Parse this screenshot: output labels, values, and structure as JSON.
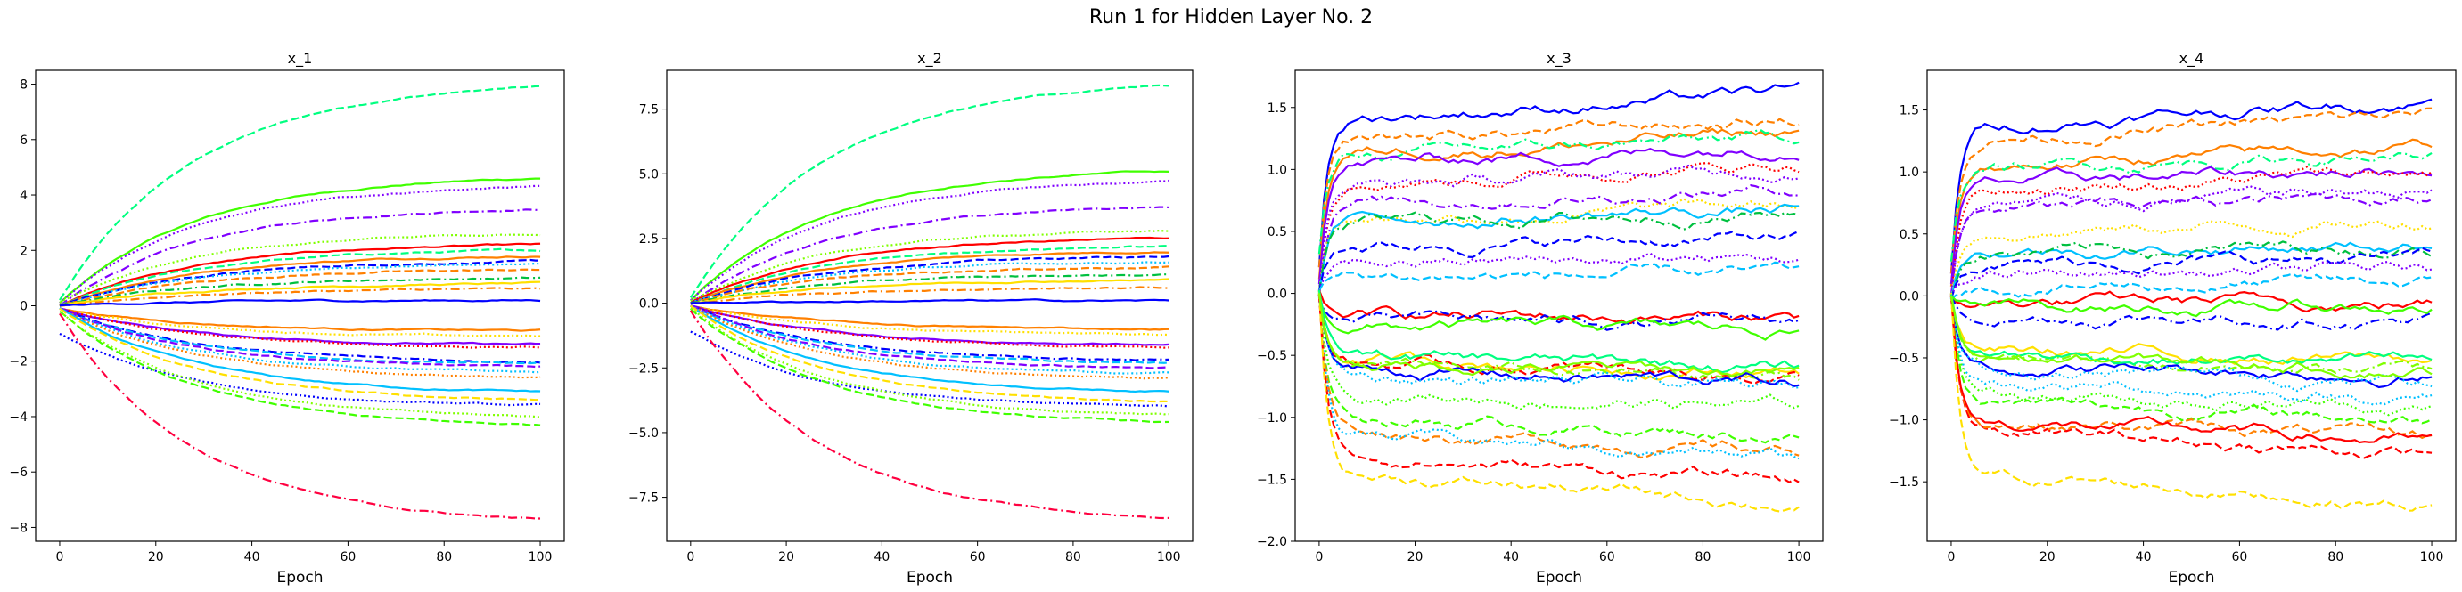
{
  "figure": {
    "suptitle": "Run 1 for Hidden Layer No. 2"
  },
  "chart_data": [
    {
      "type": "line",
      "title": "x_1",
      "xlabel": "Epoch",
      "ylabel": "",
      "xlim": [
        -5,
        105
      ],
      "ylim": [
        -8.5,
        8.5
      ],
      "xticks": [
        "0",
        "20",
        "40",
        "60",
        "80",
        "100"
      ],
      "yticks": [
        "-8",
        "-6",
        "-4",
        "-2",
        "0",
        "2",
        "4",
        "6",
        "8"
      ],
      "grid": false,
      "series_count": 30,
      "series": [
        {
          "color": "#00ff80",
          "dash": "dashed",
          "start": 0.2,
          "end": 7.9
        },
        {
          "color": "#40ff00",
          "dash": "solid",
          "start": 0.1,
          "end": 4.6
        },
        {
          "color": "#8000ff",
          "dash": "dotted",
          "start": 0.1,
          "end": 4.3
        },
        {
          "color": "#8000ff",
          "dash": "dashdot",
          "start": 0.0,
          "end": 3.5
        },
        {
          "color": "#80ff00",
          "dash": "dotted",
          "start": 0.1,
          "end": 2.6
        },
        {
          "color": "#ff0000",
          "dash": "solid",
          "start": 0.0,
          "end": 2.2
        },
        {
          "color": "#00ff80",
          "dash": "dashed",
          "start": 0.0,
          "end": 2.0
        },
        {
          "color": "#ff8000",
          "dash": "solid",
          "start": 0.0,
          "end": 1.8
        },
        {
          "color": "#0000ff",
          "dash": "dashed",
          "start": 0.0,
          "end": 1.6
        },
        {
          "color": "#00c0ff",
          "dash": "dotted",
          "start": 0.0,
          "end": 1.5
        },
        {
          "color": "#ff8000",
          "dash": "dashed",
          "start": 0.0,
          "end": 1.3
        },
        {
          "color": "#00c040",
          "dash": "dashdot",
          "start": 0.0,
          "end": 1.0
        },
        {
          "color": "#ffe000",
          "dash": "solid",
          "start": 0.0,
          "end": 0.8
        },
        {
          "color": "#ff8000",
          "dash": "dashdot",
          "start": 0.0,
          "end": 0.6
        },
        {
          "color": "#0000ff",
          "dash": "solid",
          "start": 0.0,
          "end": 0.2
        },
        {
          "color": "#ff8000",
          "dash": "solid",
          "start": -0.1,
          "end": -0.9
        },
        {
          "color": "#ffe000",
          "dash": "dotted",
          "start": -0.1,
          "end": -1.1
        },
        {
          "color": "#8000ff",
          "dash": "solid",
          "start": -0.1,
          "end": -1.4
        },
        {
          "color": "#ff0000",
          "dash": "dotted",
          "start": -0.1,
          "end": -1.5
        },
        {
          "color": "#0000ff",
          "dash": "dashdot",
          "start": -0.1,
          "end": -2.0
        },
        {
          "color": "#00c0ff",
          "dash": "dashed",
          "start": -0.1,
          "end": -2.1
        },
        {
          "color": "#8000ff",
          "dash": "dashed",
          "start": -0.1,
          "end": -2.2
        },
        {
          "color": "#00c0ff",
          "dash": "dotted",
          "start": -0.1,
          "end": -2.4
        },
        {
          "color": "#ff8000",
          "dash": "dotted",
          "start": -0.1,
          "end": -2.6
        },
        {
          "color": "#00c0ff",
          "dash": "solid",
          "start": -0.1,
          "end": -3.1
        },
        {
          "color": "#ffe000",
          "dash": "dashed",
          "start": -0.1,
          "end": -3.4
        },
        {
          "color": "#0000ff",
          "dash": "dotted",
          "start": -1.0,
          "end": -3.6
        },
        {
          "color": "#40ff00",
          "dash": "dashed",
          "start": -0.2,
          "end": -4.3
        },
        {
          "color": "#80ff00",
          "dash": "dotted",
          "start": -0.2,
          "end": -4.0
        },
        {
          "color": "#ff0040",
          "dash": "dashdot",
          "start": -0.3,
          "end": -7.7
        }
      ]
    },
    {
      "type": "line",
      "title": "x_2",
      "xlabel": "Epoch",
      "ylabel": "",
      "xlim": [
        -5,
        105
      ],
      "ylim": [
        -9.2,
        9.0
      ],
      "xticks": [
        "0",
        "20",
        "40",
        "60",
        "80",
        "100"
      ],
      "yticks": [
        "-7.5",
        "-5.0",
        "-2.5",
        "0.0",
        "2.5",
        "5.0",
        "7.5"
      ],
      "grid": false,
      "series_count": 30,
      "series": [
        {
          "color": "#00ff80",
          "dash": "dashed",
          "start": 0.2,
          "end": 8.4
        },
        {
          "color": "#40ff00",
          "dash": "solid",
          "start": 0.1,
          "end": 5.1
        },
        {
          "color": "#8000ff",
          "dash": "dotted",
          "start": 0.1,
          "end": 4.7
        },
        {
          "color": "#8000ff",
          "dash": "dashdot",
          "start": 0.0,
          "end": 3.7
        },
        {
          "color": "#80ff00",
          "dash": "dotted",
          "start": 0.1,
          "end": 2.8
        },
        {
          "color": "#ff0000",
          "dash": "solid",
          "start": 0.0,
          "end": 2.5
        },
        {
          "color": "#00ff80",
          "dash": "dashed",
          "start": 0.0,
          "end": 2.2
        },
        {
          "color": "#ff8000",
          "dash": "solid",
          "start": 0.0,
          "end": 2.0
        },
        {
          "color": "#0000ff",
          "dash": "dashed",
          "start": 0.0,
          "end": 1.8
        },
        {
          "color": "#00c0ff",
          "dash": "dotted",
          "start": 0.0,
          "end": 1.6
        },
        {
          "color": "#ff8000",
          "dash": "dashed",
          "start": 0.0,
          "end": 1.4
        },
        {
          "color": "#00c040",
          "dash": "dashdot",
          "start": 0.0,
          "end": 1.1
        },
        {
          "color": "#ffe000",
          "dash": "solid",
          "start": 0.0,
          "end": 0.9
        },
        {
          "color": "#ff8000",
          "dash": "dashdot",
          "start": 0.0,
          "end": 0.6
        },
        {
          "color": "#0000ff",
          "dash": "solid",
          "start": 0.0,
          "end": 0.1
        },
        {
          "color": "#ff8000",
          "dash": "solid",
          "start": -0.1,
          "end": -1.0
        },
        {
          "color": "#ffe000",
          "dash": "dotted",
          "start": -0.1,
          "end": -1.2
        },
        {
          "color": "#8000ff",
          "dash": "solid",
          "start": -0.1,
          "end": -1.6
        },
        {
          "color": "#ff0000",
          "dash": "dotted",
          "start": -0.1,
          "end": -1.7
        },
        {
          "color": "#0000ff",
          "dash": "dashdot",
          "start": -0.1,
          "end": -2.2
        },
        {
          "color": "#00c0ff",
          "dash": "dashed",
          "start": -0.1,
          "end": -2.3
        },
        {
          "color": "#8000ff",
          "dash": "dashed",
          "start": -0.1,
          "end": -2.5
        },
        {
          "color": "#00c0ff",
          "dash": "dotted",
          "start": -0.1,
          "end": -2.7
        },
        {
          "color": "#ff8000",
          "dash": "dotted",
          "start": -0.1,
          "end": -2.9
        },
        {
          "color": "#00c0ff",
          "dash": "solid",
          "start": -0.1,
          "end": -3.4
        },
        {
          "color": "#ffe000",
          "dash": "dashed",
          "start": -0.1,
          "end": -3.8
        },
        {
          "color": "#0000ff",
          "dash": "dotted",
          "start": -1.1,
          "end": -4.0
        },
        {
          "color": "#40ff00",
          "dash": "dashed",
          "start": -0.2,
          "end": -4.6
        },
        {
          "color": "#80ff00",
          "dash": "dotted",
          "start": -0.2,
          "end": -4.3
        },
        {
          "color": "#ff0040",
          "dash": "dashdot",
          "start": -0.3,
          "end": -8.3
        }
      ]
    },
    {
      "type": "line",
      "title": "x_3",
      "xlabel": "Epoch",
      "ylabel": "",
      "xlim": [
        -5,
        105
      ],
      "ylim": [
        -2.0,
        1.8
      ],
      "xticks": [
        "0",
        "20",
        "40",
        "60",
        "80",
        "100"
      ],
      "yticks": [
        "-2.0",
        "-1.5",
        "-1.0",
        "-0.5",
        "0.0",
        "0.5",
        "1.0",
        "1.5"
      ],
      "grid": false,
      "series_count": 30,
      "series": [
        {
          "color": "#0000ff",
          "dash": "solid",
          "start": 0.2,
          "end": 1.62
        },
        {
          "color": "#ff8000",
          "dash": "dashed",
          "start": 0.2,
          "end": 1.4
        },
        {
          "color": "#ff8000",
          "dash": "solid",
          "start": 0.1,
          "end": 1.3
        },
        {
          "color": "#00ff80",
          "dash": "dashdot",
          "start": 0.3,
          "end": 1.25
        },
        {
          "color": "#8000ff",
          "dash": "solid",
          "start": 0.1,
          "end": 1.2
        },
        {
          "color": "#ff0000",
          "dash": "dotted",
          "start": 0.0,
          "end": 1.05
        },
        {
          "color": "#8000ff",
          "dash": "dotted",
          "start": 0.0,
          "end": 1.0
        },
        {
          "color": "#8000ff",
          "dash": "dashdot",
          "start": 0.0,
          "end": 0.85
        },
        {
          "color": "#ffe000",
          "dash": "dotted",
          "start": 0.0,
          "end": 0.7
        },
        {
          "color": "#00c0ff",
          "dash": "solid",
          "start": 0.0,
          "end": 0.68
        },
        {
          "color": "#00c040",
          "dash": "dashdot",
          "start": 0.0,
          "end": 0.66
        },
        {
          "color": "#0000ff",
          "dash": "dashed",
          "start": 0.0,
          "end": 0.45
        },
        {
          "color": "#8000ff",
          "dash": "dotted",
          "start": 0.0,
          "end": 0.28
        },
        {
          "color": "#00c0ff",
          "dash": "dashed",
          "start": 0.0,
          "end": 0.15
        },
        {
          "color": "#ff0000",
          "dash": "solid",
          "start": 0.0,
          "end": -0.2
        },
        {
          "color": "#0000ff",
          "dash": "dashdot",
          "start": 0.0,
          "end": -0.25
        },
        {
          "color": "#40ff00",
          "dash": "solid",
          "start": 0.0,
          "end": -0.3
        },
        {
          "color": "#ffe000",
          "dash": "solid",
          "start": 0.0,
          "end": -0.62
        },
        {
          "color": "#ff0000",
          "dash": "dashed",
          "start": 0.0,
          "end": -0.66
        },
        {
          "color": "#80ff00",
          "dash": "dashdot",
          "start": 0.0,
          "end": -0.7
        },
        {
          "color": "#0000ff",
          "dash": "solid",
          "start": 0.0,
          "end": -0.72
        },
        {
          "color": "#00c0ff",
          "dash": "dotted",
          "start": 0.0,
          "end": -0.78
        },
        {
          "color": "#40ff00",
          "dash": "dotted",
          "start": 0.0,
          "end": -0.92
        },
        {
          "color": "#40ff00",
          "dash": "dashed",
          "start": 0.0,
          "end": -1.15
        },
        {
          "color": "#ff8000",
          "dash": "dashed",
          "start": 0.0,
          "end": -1.28
        },
        {
          "color": "#00c0ff",
          "dash": "dotted",
          "start": 0.0,
          "end": -1.33
        },
        {
          "color": "#ff0000",
          "dash": "dashed",
          "start": 0.0,
          "end": -1.52
        },
        {
          "color": "#ffe000",
          "dash": "dashed",
          "start": 0.0,
          "end": -1.7
        },
        {
          "color": "#00ff80",
          "dash": "solid",
          "start": 0.0,
          "end": -0.6
        },
        {
          "color": "#80ff00",
          "dash": "solid",
          "start": 0.0,
          "end": -0.65
        }
      ]
    },
    {
      "type": "line",
      "title": "x_4",
      "xlabel": "Epoch",
      "ylabel": "",
      "xlim": [
        -5,
        105
      ],
      "ylim": [
        -1.98,
        1.82
      ],
      "xticks": [
        "0",
        "20",
        "40",
        "60",
        "80",
        "100"
      ],
      "yticks": [
        "-1.5",
        "-1.0",
        "-0.5",
        "0.0",
        "0.5",
        "1.0",
        "1.5"
      ],
      "grid": false,
      "series_count": 30,
      "series": [
        {
          "color": "#0000ff",
          "dash": "solid",
          "start": 0.2,
          "end": 1.58
        },
        {
          "color": "#ff8000",
          "dash": "dashed",
          "start": 0.2,
          "end": 1.45
        },
        {
          "color": "#ff8000",
          "dash": "solid",
          "start": 0.1,
          "end": 1.2
        },
        {
          "color": "#00ff80",
          "dash": "dashdot",
          "start": 0.3,
          "end": 1.15
        },
        {
          "color": "#8000ff",
          "dash": "solid",
          "start": 0.1,
          "end": 1.03
        },
        {
          "color": "#ff0000",
          "dash": "dotted",
          "start": 0.0,
          "end": 1.0
        },
        {
          "color": "#8000ff",
          "dash": "dotted",
          "start": 0.0,
          "end": 0.85
        },
        {
          "color": "#8000ff",
          "dash": "dashdot",
          "start": 0.0,
          "end": 0.8
        },
        {
          "color": "#ffe000",
          "dash": "dotted",
          "start": 0.0,
          "end": 0.6
        },
        {
          "color": "#00c0ff",
          "dash": "solid",
          "start": 0.0,
          "end": 0.42
        },
        {
          "color": "#00c040",
          "dash": "dashdot",
          "start": 0.0,
          "end": 0.4
        },
        {
          "color": "#0000ff",
          "dash": "dashed",
          "start": 0.0,
          "end": 0.3
        },
        {
          "color": "#8000ff",
          "dash": "dotted",
          "start": 0.0,
          "end": 0.2
        },
        {
          "color": "#00c0ff",
          "dash": "dashed",
          "start": 0.0,
          "end": 0.1
        },
        {
          "color": "#ff0000",
          "dash": "solid",
          "start": 0.0,
          "end": -0.06
        },
        {
          "color": "#0000ff",
          "dash": "dashdot",
          "start": 0.0,
          "end": -0.18
        },
        {
          "color": "#40ff00",
          "dash": "solid",
          "start": 0.0,
          "end": -0.1
        },
        {
          "color": "#ffe000",
          "dash": "solid",
          "start": 0.0,
          "end": -0.52
        },
        {
          "color": "#ff0000",
          "dash": "dashed",
          "start": 0.0,
          "end": -1.28
        },
        {
          "color": "#80ff00",
          "dash": "dashdot",
          "start": 0.0,
          "end": -0.6
        },
        {
          "color": "#0000ff",
          "dash": "solid",
          "start": 0.0,
          "end": -0.64
        },
        {
          "color": "#00c0ff",
          "dash": "dotted",
          "start": 0.0,
          "end": -0.7
        },
        {
          "color": "#40ff00",
          "dash": "dotted",
          "start": 0.0,
          "end": -0.9
        },
        {
          "color": "#40ff00",
          "dash": "dashed",
          "start": 0.0,
          "end": -1.0
        },
        {
          "color": "#ff8000",
          "dash": "dashed",
          "start": 0.0,
          "end": -1.15
        },
        {
          "color": "#00c0ff",
          "dash": "dotted",
          "start": 0.0,
          "end": -0.82
        },
        {
          "color": "#ff0000",
          "dash": "solid",
          "start": 0.0,
          "end": -1.18
        },
        {
          "color": "#ffe000",
          "dash": "dashed",
          "start": 0.0,
          "end": -1.68
        },
        {
          "color": "#00ff80",
          "dash": "solid",
          "start": 0.0,
          "end": -0.55
        },
        {
          "color": "#80ff00",
          "dash": "solid",
          "start": 0.0,
          "end": -0.58
        }
      ]
    }
  ]
}
